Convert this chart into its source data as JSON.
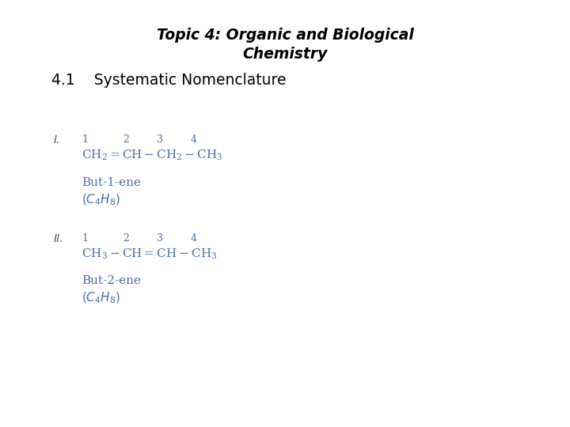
{
  "title_line1": "Topic 4: Organic and Biological",
  "title_line2": "Chemistry",
  "subtitle": "4.1    Systematic Nomenclature",
  "background_color": "#ffffff",
  "title_fontsize": 13.5,
  "subtitle_fontsize": 13.5,
  "text_color": "#000000",
  "chem_color": "#4a6fa5",
  "roman_color": "#555555",
  "chem_fontsize": 11,
  "num_fontsize": 9,
  "name_fontsize": 11,
  "section_I_roman": "I.",
  "section_II_roman": "II.",
  "section_I_formula": "$\\mathregular{CH_2 = CH - CH_2 - CH_3}$",
  "section_II_formula": "$\\mathregular{CH_3 - CH = CH - CH_3}$",
  "section_I_name": "But-1-ene",
  "section_II_name": "But-2-ene",
  "section_I_molformula": "$(C_4H_8)$",
  "section_II_molformula": "$(C_4H_8)$"
}
